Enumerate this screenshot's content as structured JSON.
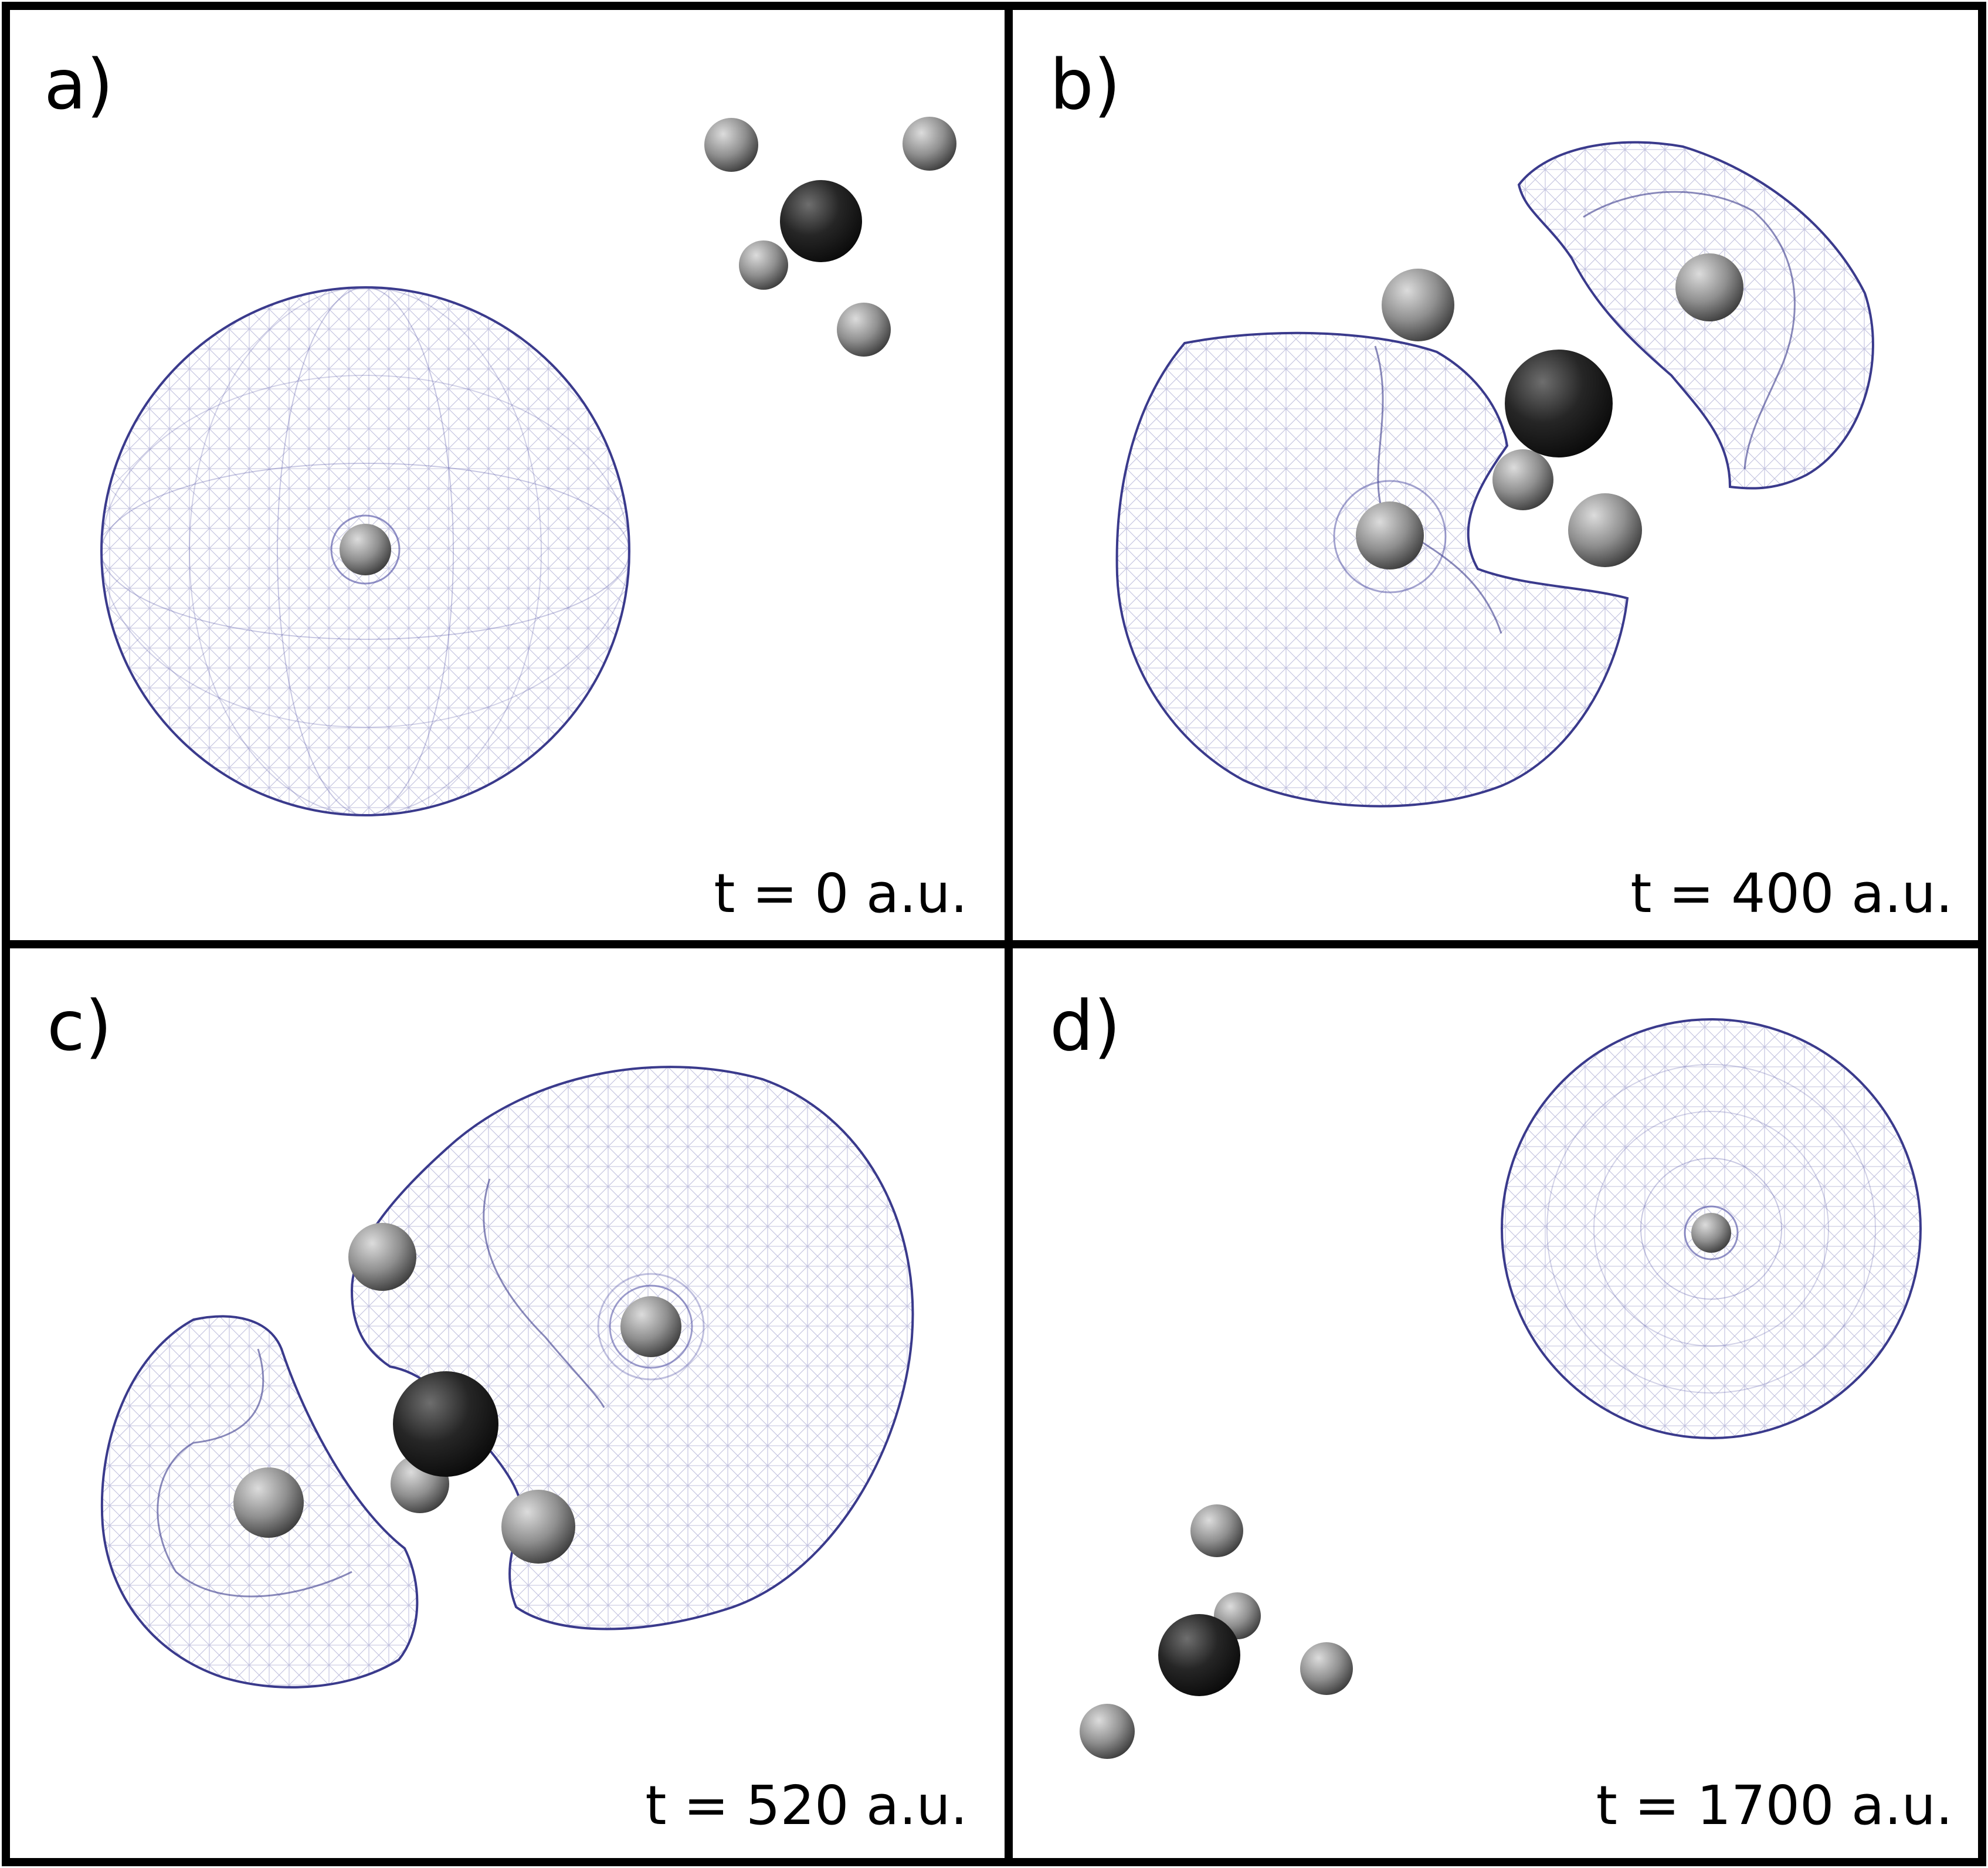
{
  "panels": [
    {
      "id": "a",
      "label": "a)",
      "time": "t = 0 a.u."
    },
    {
      "id": "b",
      "label": "b)",
      "time": "t = 400 a.u."
    },
    {
      "id": "c",
      "label": "c)",
      "time": "t = 520 a.u."
    },
    {
      "id": "d",
      "label": "d)",
      "time": "t = 1700 a.u."
    }
  ],
  "colors": {
    "frame": "#000000",
    "mesh": "#3a3a8c",
    "carbon": "#1e1e1e",
    "hydrogen": "#7a7a7a",
    "projectile": "#6a6a6a"
  }
}
